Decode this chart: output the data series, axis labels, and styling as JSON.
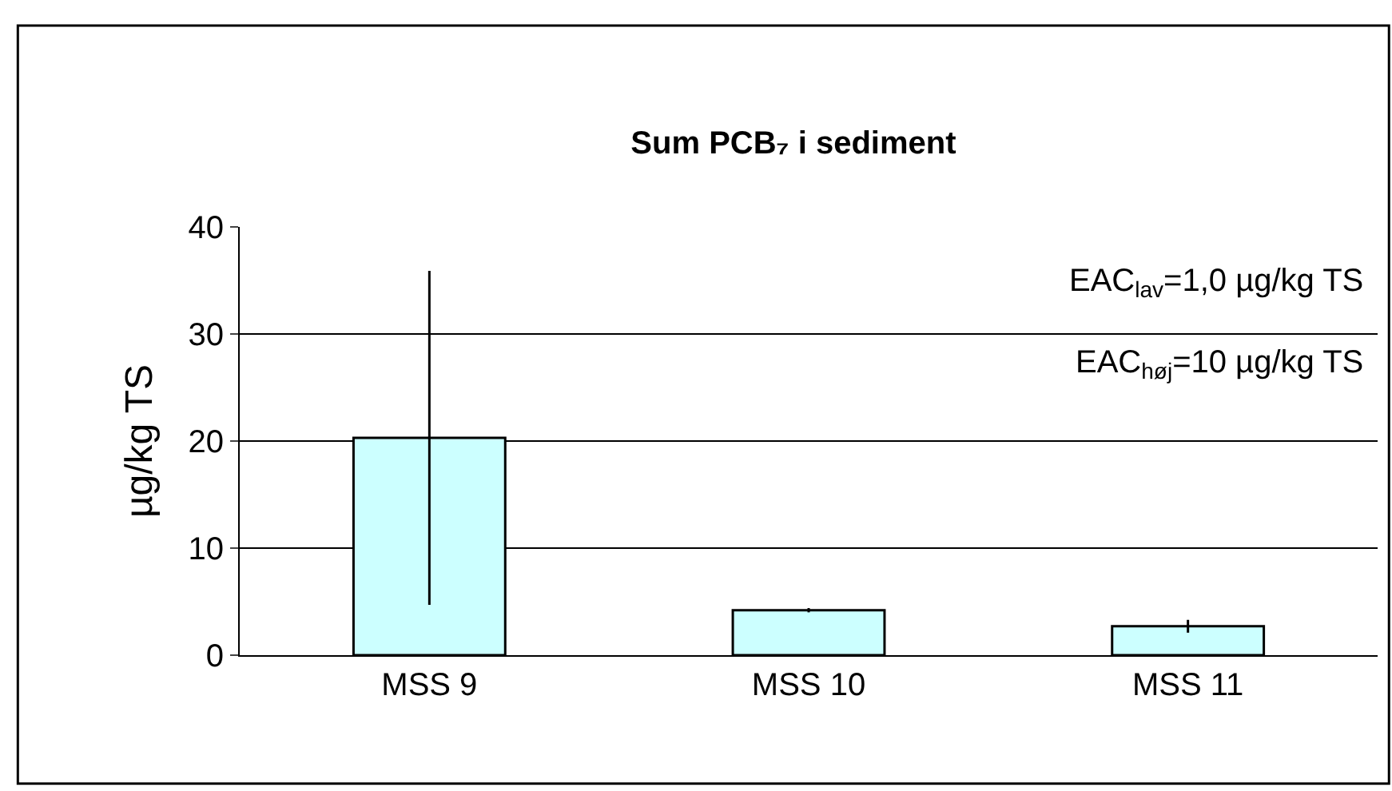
{
  "chart_data": {
    "type": "bar",
    "title": "Sum PCB₇ i sediment",
    "ylabel": "µg/kg TS",
    "categories": [
      "MSS 9",
      "MSS 10",
      "MSS 11"
    ],
    "values": [
      20.3,
      4.2,
      2.7
    ],
    "errors": [
      15.6,
      0.2,
      0.6
    ],
    "color": "#ccffff",
    "ylim": [
      0,
      40
    ],
    "yticks": [
      0,
      10,
      20,
      30,
      40
    ],
    "grid": "y",
    "annotations": [
      "EAC$_{lav}$=1,0 µg/kg TS",
      "EAC$_{høj}$=10 µg/kg TS"
    ]
  }
}
